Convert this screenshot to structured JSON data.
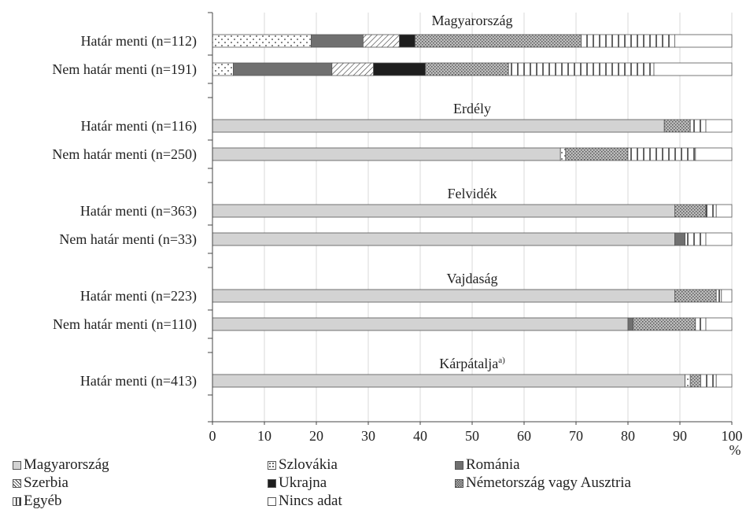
{
  "chart_data": {
    "type": "bar",
    "orientation": "horizontal",
    "stacked": true,
    "xlim": [
      0,
      100
    ],
    "xticks": [
      0,
      10,
      20,
      30,
      40,
      50,
      60,
      70,
      80,
      90,
      100
    ],
    "x_unit": "%",
    "grid": "vertical",
    "legend_position": "bottom",
    "categories": [
      "Magyarország",
      "Szlovákia",
      "Románia",
      "Szerbia",
      "Ukrajna",
      "Németország vagy Ausztria",
      "Egyéb",
      "Nincs adat"
    ],
    "groups": [
      {
        "title": "Magyarország",
        "rows": [
          {
            "label": "Határ menti (n=112)",
            "values": [
              0,
              19,
              10,
              7,
              3,
              32,
              18,
              11
            ]
          },
          {
            "label": "Nem határ menti (n=191)",
            "values": [
              0,
              4,
              19,
              8,
              10,
              16,
              28,
              15
            ]
          }
        ]
      },
      {
        "title": "Erdély",
        "rows": [
          {
            "label": "Határ menti (n=116)",
            "values": [
              87,
              0,
              0,
              0,
              0,
              5,
              3,
              5
            ]
          },
          {
            "label": "Nem határ menti (n=250)",
            "values": [
              67,
              1,
              0,
              0,
              0,
              12,
              13,
              7
            ]
          }
        ]
      },
      {
        "title": "Felvidék",
        "rows": [
          {
            "label": "Határ menti (n=363)",
            "values": [
              89,
              0,
              0,
              0,
              0,
              6,
              2,
              3
            ]
          },
          {
            "label": "Nem határ menti (n=33)",
            "values": [
              89,
              0,
              2,
              0,
              0,
              0,
              4,
              5
            ]
          }
        ]
      },
      {
        "title": "Vajdaság",
        "rows": [
          {
            "label": "Határ menti (n=223)",
            "values": [
              89,
              0,
              0,
              0,
              0,
              8,
              1,
              2
            ]
          },
          {
            "label": "Nem határ menti (n=110)",
            "values": [
              80,
              0,
              1,
              0,
              0,
              12,
              2,
              5
            ]
          }
        ]
      },
      {
        "title": "Kárpátalja",
        "title_superscript": "a)",
        "rows": [
          {
            "label": "Határ menti (n=413)",
            "values": [
              91,
              1,
              0,
              0,
              0,
              2,
              3,
              3
            ]
          }
        ]
      }
    ],
    "series_styles": [
      {
        "pattern": "solid",
        "color": "#d3d3d3"
      },
      {
        "pattern": "dots",
        "color": "#ffffff"
      },
      {
        "pattern": "solid",
        "color": "#707070"
      },
      {
        "pattern": "diagonal",
        "color": "#ffffff"
      },
      {
        "pattern": "solid",
        "color": "#1e1e1e"
      },
      {
        "pattern": "crosshatch",
        "color": "#b8b8b8"
      },
      {
        "pattern": "vertical-lines",
        "color": "#ffffff"
      },
      {
        "pattern": "solid",
        "color": "#ffffff"
      }
    ]
  }
}
